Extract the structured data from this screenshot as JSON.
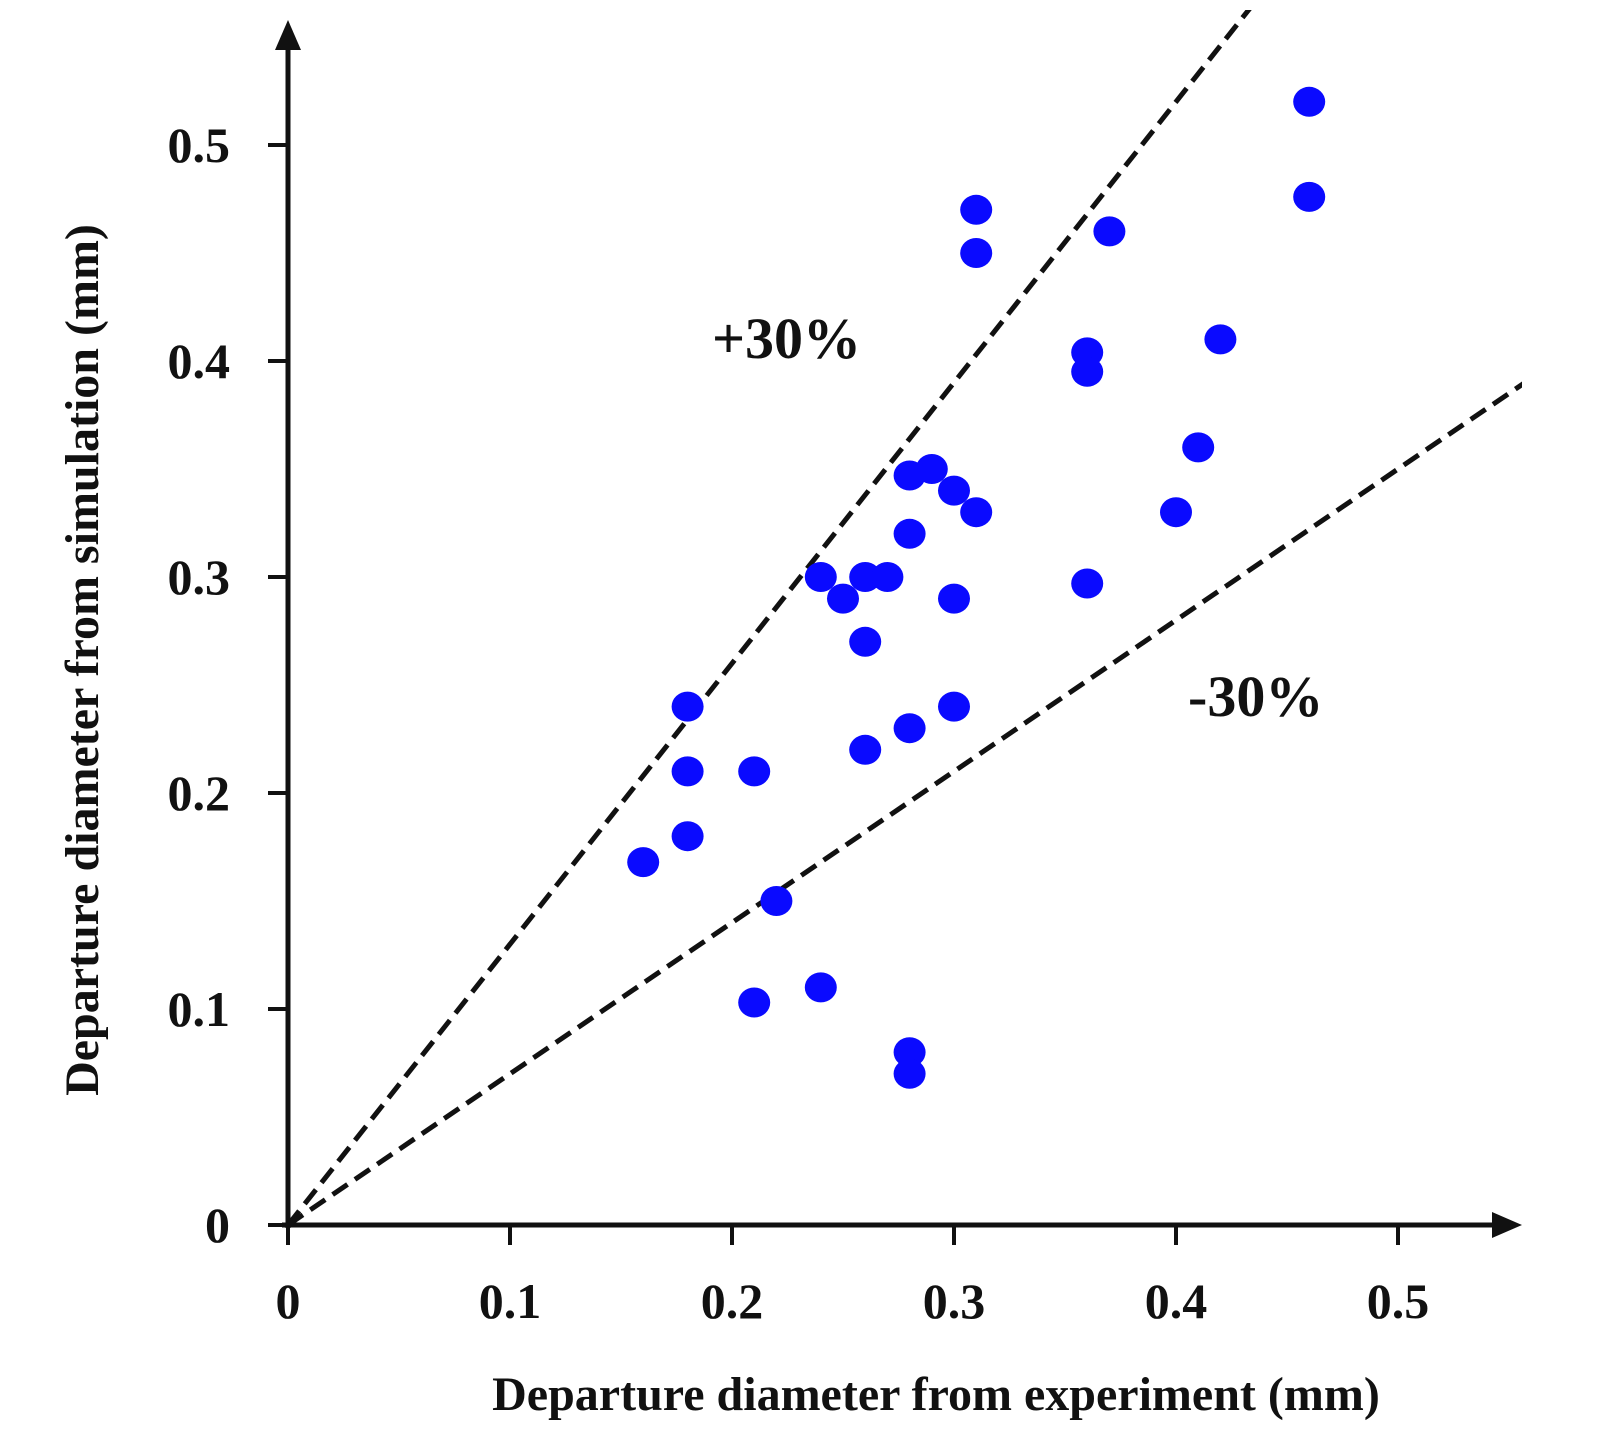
{
  "chart_data": {
    "type": "scatter",
    "title": "",
    "xlabel": "Departure diameter from experiment (mm)",
    "ylabel": "Departure diameter from simulation (mm)",
    "xlim": [
      0,
      0.55
    ],
    "ylim": [
      0,
      0.55
    ],
    "xticks": [
      {
        "value": 0,
        "label": "0"
      },
      {
        "value": 0.1,
        "label": "0.1"
      },
      {
        "value": 0.2,
        "label": "0.2"
      },
      {
        "value": 0.3,
        "label": "0.3"
      },
      {
        "value": 0.4,
        "label": "0.4"
      },
      {
        "value": 0.5,
        "label": "0.5"
      }
    ],
    "yticks": [
      {
        "value": 0,
        "label": "0"
      },
      {
        "value": 0.1,
        "label": "0.1"
      },
      {
        "value": 0.2,
        "label": "0.2"
      },
      {
        "value": 0.3,
        "label": "0.3"
      },
      {
        "value": 0.4,
        "label": "0.4"
      },
      {
        "value": 0.5,
        "label": "0.5"
      }
    ],
    "grid": false,
    "marker_color": "#0a0aff",
    "line_color": "#111111",
    "reference_lines": [
      {
        "name": "+30%",
        "label": "+30%",
        "slope": 1.3,
        "style": "dashed"
      },
      {
        "name": "-30%",
        "label": "-30%",
        "slope": 0.7,
        "style": "dashed"
      }
    ],
    "series": [
      {
        "name": "data",
        "points": [
          [
            0.16,
            0.168
          ],
          [
            0.18,
            0.24
          ],
          [
            0.18,
            0.21
          ],
          [
            0.18,
            0.18
          ],
          [
            0.21,
            0.21
          ],
          [
            0.21,
            0.103
          ],
          [
            0.22,
            0.15
          ],
          [
            0.24,
            0.3
          ],
          [
            0.24,
            0.11
          ],
          [
            0.25,
            0.29
          ],
          [
            0.26,
            0.3
          ],
          [
            0.26,
            0.27
          ],
          [
            0.26,
            0.22
          ],
          [
            0.27,
            0.3
          ],
          [
            0.28,
            0.347
          ],
          [
            0.28,
            0.32
          ],
          [
            0.28,
            0.23
          ],
          [
            0.28,
            0.08
          ],
          [
            0.28,
            0.07
          ],
          [
            0.29,
            0.35
          ],
          [
            0.3,
            0.34
          ],
          [
            0.3,
            0.29
          ],
          [
            0.3,
            0.24
          ],
          [
            0.31,
            0.47
          ],
          [
            0.31,
            0.45
          ],
          [
            0.31,
            0.33
          ],
          [
            0.36,
            0.404
          ],
          [
            0.36,
            0.395
          ],
          [
            0.36,
            0.297
          ],
          [
            0.37,
            0.46
          ],
          [
            0.4,
            0.33
          ],
          [
            0.41,
            0.36
          ],
          [
            0.42,
            0.41
          ],
          [
            0.46,
            0.52
          ],
          [
            0.46,
            0.476
          ]
        ]
      }
    ]
  }
}
